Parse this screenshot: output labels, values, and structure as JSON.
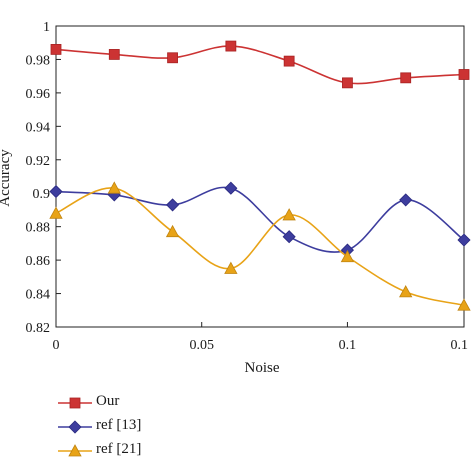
{
  "chart_data": {
    "type": "line",
    "xlabel": "Noise",
    "ylabel": "Accuracy",
    "xlim": [
      0,
      0.14
    ],
    "ylim": [
      0.82,
      1.0
    ],
    "xticks": [
      0,
      0.05,
      0.1,
      0.14
    ],
    "xtick_labels": [
      "0",
      "0.05",
      "0.1",
      "0.1"
    ],
    "yticks": [
      0.82,
      0.84,
      0.86,
      0.88,
      0.9,
      0.92,
      0.94,
      0.96,
      0.98,
      1.0
    ],
    "ytick_labels": [
      "0.82",
      "0.84",
      "0.86",
      "0.88",
      "0.9",
      "0.92",
      "0.94",
      "0.96",
      "0.98",
      "1"
    ],
    "grid": false,
    "legend_position": "bottom-left",
    "x": [
      0,
      0.02,
      0.04,
      0.06,
      0.08,
      0.1,
      0.12,
      0.14
    ],
    "series": [
      {
        "name": "Our",
        "color": "#cc3333",
        "marker": "square",
        "values": [
          0.986,
          0.983,
          0.981,
          0.988,
          0.979,
          0.966,
          0.969,
          0.971
        ]
      },
      {
        "name": "ref [13]",
        "color": "#3d3d9e",
        "marker": "diamond",
        "values": [
          0.901,
          0.899,
          0.893,
          0.903,
          0.874,
          0.866,
          0.896,
          0.872
        ]
      },
      {
        "name": "ref [21]",
        "color": "#e8a317",
        "marker": "triangle",
        "values": [
          0.888,
          0.903,
          0.877,
          0.855,
          0.887,
          0.862,
          0.841,
          0.833
        ]
      }
    ]
  }
}
